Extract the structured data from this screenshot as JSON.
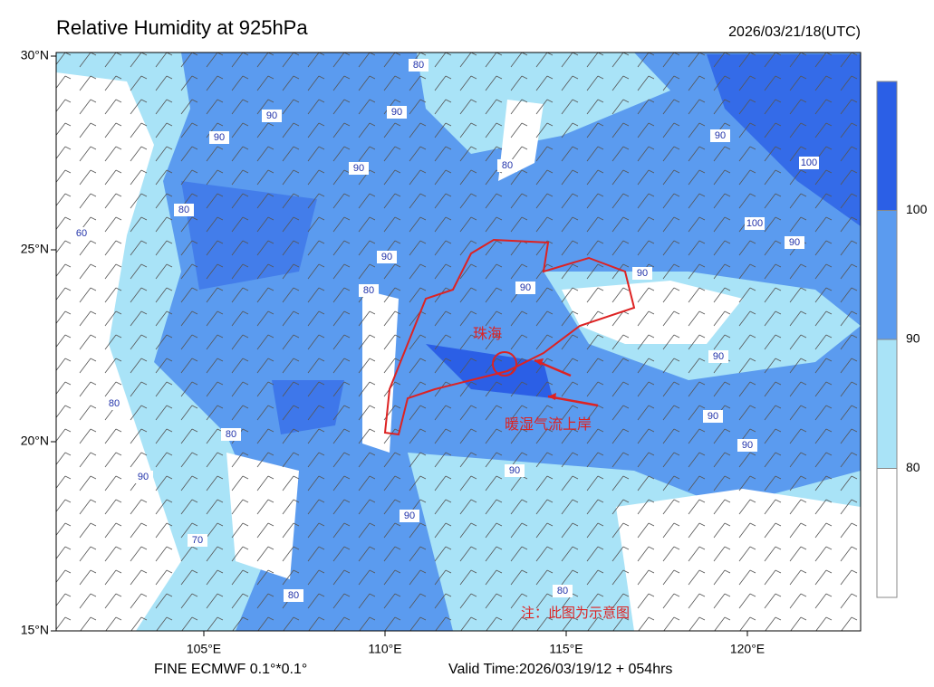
{
  "header": {
    "title": "Relative Humidity at 925hPa",
    "datetime": "2026/03/21/18(UTC)"
  },
  "map": {
    "lat_labels": [
      "30°N",
      "25°N",
      "20°N",
      "15°N"
    ],
    "lon_labels": [
      "105°E",
      "110°E",
      "115°E",
      "120°E"
    ],
    "contour_labels": [
      "90",
      "90",
      "90",
      "90",
      "80",
      "80",
      "90",
      "100",
      "100",
      "90",
      "90",
      "80",
      "90",
      "90",
      "90",
      "90",
      "90",
      "90",
      "90",
      "90",
      "80",
      "80",
      "80",
      "80",
      "70",
      "60",
      "80"
    ]
  },
  "colorbar": {
    "labels": [
      "100",
      "90",
      "80"
    ],
    "colors": [
      "#2b5fe6",
      "#5b9bef",
      "#a9e3f7",
      "#ffffff"
    ]
  },
  "annotations": {
    "city": "珠海",
    "flow": "暖湿气流上岸",
    "note": "注：此图为示意图"
  },
  "footer": {
    "model": "FINE ECMWF 0.1°*0.1°",
    "valid": "Valid Time:2026/03/19/12 + 054hrs"
  }
}
